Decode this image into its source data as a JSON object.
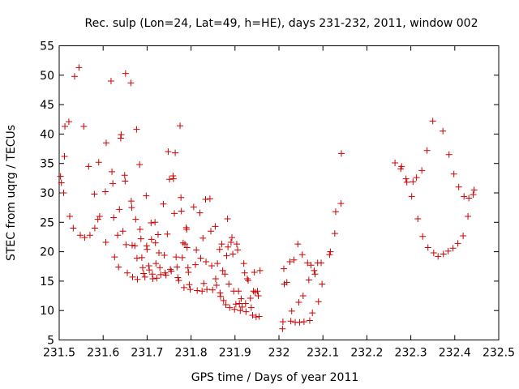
{
  "chart_data": {
    "type": "scatter",
    "title": "Rec. sulp (Lon=24, Lat=49, h=HE), days 231-232, 2011, window 002",
    "xlabel": "GPS time / Days of year 2011",
    "ylabel": "STEC from uqrg / TECUs",
    "xlim": [
      231.5,
      232.5
    ],
    "ylim": [
      5,
      55
    ],
    "x_ticks": [
      "231.5",
      "231.6",
      "231.7",
      "231.8",
      "231.9",
      "232",
      "232.1",
      "232.2",
      "232.3",
      "232.4",
      "232.5"
    ],
    "y_ticks": [
      "5",
      "10",
      "15",
      "20",
      "25",
      "30",
      "35",
      "40",
      "45",
      "50",
      "55"
    ],
    "marker": "+",
    "color": "#cc0000",
    "grid": false,
    "legend": "none",
    "points": [
      [
        231.503,
        32.8
      ],
      [
        231.505,
        31.7
      ],
      [
        231.51,
        30.0
      ],
      [
        231.512,
        36.2
      ],
      [
        231.513,
        41.3
      ],
      [
        231.522,
        42.1
      ],
      [
        231.524,
        26.0
      ],
      [
        231.532,
        24.0
      ],
      [
        231.535,
        49.8
      ],
      [
        231.545,
        51.3
      ],
      [
        231.548,
        22.8
      ],
      [
        231.556,
        41.3
      ],
      [
        231.558,
        22.4
      ],
      [
        231.567,
        34.5
      ],
      [
        231.57,
        22.8
      ],
      [
        231.58,
        29.8
      ],
      [
        231.581,
        24.0
      ],
      [
        231.588,
        25.5
      ],
      [
        231.59,
        35.2
      ],
      [
        231.592,
        26.0
      ],
      [
        231.605,
        30.2
      ],
      [
        231.606,
        21.6
      ],
      [
        231.607,
        38.5
      ],
      [
        231.618,
        49.0
      ],
      [
        231.62,
        33.6
      ],
      [
        231.622,
        31.6
      ],
      [
        231.624,
        25.8
      ],
      [
        231.626,
        19.1
      ],
      [
        231.633,
        22.8
      ],
      [
        231.635,
        17.4
      ],
      [
        231.637,
        27.2
      ],
      [
        231.64,
        39.3
      ],
      [
        231.641,
        39.9
      ],
      [
        231.645,
        23.5
      ],
      [
        231.649,
        33.0
      ],
      [
        231.65,
        32.0
      ],
      [
        231.651,
        50.3
      ],
      [
        231.652,
        21.2
      ],
      [
        231.655,
        16.4
      ],
      [
        231.663,
        48.7
      ],
      [
        231.664,
        28.6
      ],
      [
        231.665,
        27.5
      ],
      [
        231.666,
        21.1
      ],
      [
        231.667,
        15.7
      ],
      [
        231.672,
        21.0
      ],
      [
        231.674,
        25.5
      ],
      [
        231.676,
        40.8
      ],
      [
        231.677,
        18.9
      ],
      [
        231.678,
        15.3
      ],
      [
        231.683,
        34.8
      ],
      [
        231.684,
        23.8
      ],
      [
        231.686,
        22.2
      ],
      [
        231.688,
        19.0
      ],
      [
        231.69,
        17.3
      ],
      [
        231.692,
        16.3
      ],
      [
        231.695,
        15.7
      ],
      [
        231.698,
        29.5
      ],
      [
        231.699,
        21.0
      ],
      [
        231.7,
        20.4
      ],
      [
        231.704,
        17.6
      ],
      [
        231.705,
        16.9
      ],
      [
        231.709,
        24.9
      ],
      [
        231.71,
        22.1
      ],
      [
        231.712,
        16.2
      ],
      [
        231.713,
        15.4
      ],
      [
        231.718,
        25.0
      ],
      [
        231.719,
        21.5
      ],
      [
        231.72,
        18.0
      ],
      [
        231.722,
        15.5
      ],
      [
        231.725,
        22.9
      ],
      [
        231.727,
        19.8
      ],
      [
        231.729,
        17.3
      ],
      [
        231.731,
        16.1
      ],
      [
        231.737,
        28.1
      ],
      [
        231.739,
        19.4
      ],
      [
        231.741,
        16.4
      ],
      [
        231.743,
        16.0
      ],
      [
        231.746,
        23.0
      ],
      [
        231.748,
        37.0
      ],
      [
        231.751,
        32.3
      ],
      [
        231.753,
        17.0
      ],
      [
        231.755,
        16.7
      ],
      [
        231.759,
        32.9
      ],
      [
        231.76,
        32.4
      ],
      [
        231.762,
        26.5
      ],
      [
        231.764,
        36.8
      ],
      [
        231.766,
        19.1
      ],
      [
        231.768,
        17.4
      ],
      [
        231.77,
        15.6
      ],
      [
        231.772,
        15.1
      ],
      [
        231.775,
        41.4
      ],
      [
        231.777,
        29.2
      ],
      [
        231.778,
        26.9
      ],
      [
        231.78,
        19.0
      ],
      [
        231.782,
        21.5
      ],
      [
        231.784,
        13.9
      ],
      [
        231.786,
        21.3
      ],
      [
        231.789,
        24.1
      ],
      [
        231.79,
        23.8
      ],
      [
        231.791,
        20.7
      ],
      [
        231.793,
        17.3
      ],
      [
        231.794,
        16.5
      ],
      [
        231.796,
        14.4
      ],
      [
        231.798,
        13.6
      ],
      [
        231.806,
        27.6
      ],
      [
        231.81,
        17.8
      ],
      [
        231.812,
        20.3
      ],
      [
        231.814,
        13.4
      ],
      [
        231.82,
        26.6
      ],
      [
        231.822,
        18.9
      ],
      [
        231.825,
        13.3
      ],
      [
        231.827,
        22.3
      ],
      [
        231.829,
        14.6
      ],
      [
        231.833,
        28.9
      ],
      [
        231.834,
        18.3
      ],
      [
        231.836,
        13.6
      ],
      [
        231.843,
        29.0
      ],
      [
        231.845,
        23.5
      ],
      [
        231.847,
        17.6
      ],
      [
        231.849,
        13.5
      ],
      [
        231.855,
        24.3
      ],
      [
        231.856,
        15.4
      ],
      [
        231.858,
        14.3
      ],
      [
        231.86,
        18.0
      ],
      [
        231.865,
        20.4
      ],
      [
        231.866,
        13.0
      ],
      [
        231.867,
        12.4
      ],
      [
        231.87,
        21.3
      ],
      [
        231.872,
        16.8
      ],
      [
        231.874,
        11.7
      ],
      [
        231.877,
        16.2
      ],
      [
        231.879,
        11.0
      ],
      [
        231.881,
        19.3
      ],
      [
        231.883,
        25.6
      ],
      [
        231.884,
        20.8
      ],
      [
        231.886,
        14.5
      ],
      [
        231.888,
        10.5
      ],
      [
        231.891,
        21.6
      ],
      [
        231.893,
        22.4
      ],
      [
        231.895,
        19.6
      ],
      [
        231.897,
        13.3
      ],
      [
        231.899,
        10.2
      ],
      [
        231.902,
        11.1
      ],
      [
        231.904,
        21.3
      ],
      [
        231.906,
        20.3
      ],
      [
        231.908,
        13.3
      ],
      [
        231.91,
        11.2
      ],
      [
        231.912,
        10.0
      ],
      [
        231.914,
        12.0
      ],
      [
        231.916,
        10.6
      ],
      [
        231.92,
        18.0
      ],
      [
        231.922,
        16.4
      ],
      [
        231.924,
        11.2
      ],
      [
        231.925,
        9.8
      ],
      [
        231.928,
        15.4
      ],
      [
        231.93,
        15.1
      ],
      [
        231.935,
        12.1
      ],
      [
        231.937,
        10.5
      ],
      [
        231.94,
        9.2
      ],
      [
        231.942,
        13.3
      ],
      [
        231.944,
        16.5
      ],
      [
        231.946,
        13.1
      ],
      [
        231.948,
        8.9
      ],
      [
        231.951,
        13.3
      ],
      [
        231.953,
        12.5
      ],
      [
        231.955,
        9.0
      ],
      [
        231.957,
        16.8
      ],
      [
        232.008,
        6.9
      ],
      [
        232.009,
        8.1
      ],
      [
        232.011,
        17.1
      ],
      [
        232.012,
        14.5
      ],
      [
        232.018,
        14.8
      ],
      [
        232.025,
        18.3
      ],
      [
        232.027,
        8.2
      ],
      [
        232.029,
        9.9
      ],
      [
        232.034,
        18.6
      ],
      [
        232.037,
        8.0
      ],
      [
        232.043,
        21.3
      ],
      [
        232.045,
        11.4
      ],
      [
        232.047,
        8.0
      ],
      [
        232.053,
        19.5
      ],
      [
        232.055,
        12.5
      ],
      [
        232.057,
        8.1
      ],
      [
        232.065,
        18.1
      ],
      [
        232.068,
        15.2
      ],
      [
        232.07,
        8.3
      ],
      [
        232.073,
        17.7
      ],
      [
        232.076,
        9.6
      ],
      [
        232.08,
        16.8
      ],
      [
        232.082,
        16.2
      ],
      [
        232.088,
        18.1
      ],
      [
        232.09,
        11.5
      ],
      [
        232.096,
        18.1
      ],
      [
        232.098,
        14.5
      ],
      [
        232.115,
        19.5
      ],
      [
        232.117,
        20.0
      ],
      [
        232.127,
        23.1
      ],
      [
        232.129,
        26.8
      ],
      [
        232.141,
        28.2
      ],
      [
        232.142,
        36.7
      ],
      [
        232.264,
        35.1
      ],
      [
        232.277,
        34.1
      ],
      [
        232.279,
        34.5
      ],
      [
        232.289,
        32.4
      ],
      [
        232.291,
        31.8
      ],
      [
        232.302,
        29.4
      ],
      [
        232.305,
        31.9
      ],
      [
        232.313,
        32.6
      ],
      [
        232.316,
        25.6
      ],
      [
        232.325,
        33.8
      ],
      [
        232.327,
        22.6
      ],
      [
        232.337,
        37.2
      ],
      [
        232.339,
        20.7
      ],
      [
        232.35,
        42.2
      ],
      [
        232.352,
        19.8
      ],
      [
        232.362,
        19.2
      ],
      [
        232.373,
        40.5
      ],
      [
        232.374,
        19.6
      ],
      [
        232.385,
        20.1
      ],
      [
        232.387,
        36.5
      ],
      [
        232.396,
        20.6
      ],
      [
        232.398,
        33.2
      ],
      [
        232.407,
        21.4
      ],
      [
        232.409,
        31.0
      ],
      [
        232.419,
        22.7
      ],
      [
        232.421,
        29.4
      ],
      [
        232.43,
        26.0
      ],
      [
        232.432,
        29.1
      ],
      [
        232.442,
        29.7
      ],
      [
        232.444,
        30.5
      ]
    ]
  }
}
